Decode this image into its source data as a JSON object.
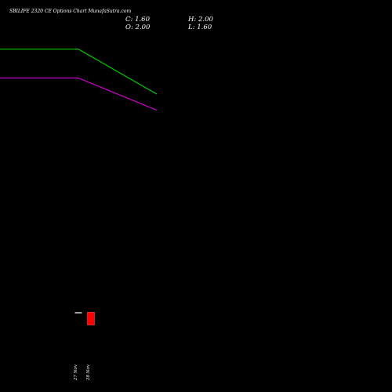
{
  "title": "SBILIFE 2320  CE Options  Chart MunafaSutra.com",
  "ohlc": {
    "close_label": "C: 1.60",
    "high_label": "H: 2.00",
    "open_label": "O: 2.00",
    "low_label": "L: 1.60"
  },
  "colors": {
    "background": "#000000",
    "green_line": "#00cc00",
    "magenta_line": "#cc00cc",
    "bear_candle": "#ff0000",
    "flat_candle": "#cccccc",
    "text": "#ffffff"
  },
  "chart_data": {
    "type": "candlestick",
    "dates": [
      "27 Nov",
      "28 Nov"
    ],
    "candles": [
      {
        "date": "27 Nov",
        "open": 2.0,
        "high": 2.0,
        "low": 2.0,
        "close": 2.0
      },
      {
        "date": "28 Nov",
        "open": 2.0,
        "high": 2.0,
        "low": 1.6,
        "close": 1.6
      }
    ],
    "lines": [
      {
        "color": "green",
        "points": [
          [
            0,
            10.2
          ],
          [
            1,
            10.2
          ],
          [
            2,
            8.8
          ]
        ]
      },
      {
        "color": "magenta",
        "points": [
          [
            0,
            9.3
          ],
          [
            1,
            9.3
          ],
          [
            2,
            8.3
          ]
        ]
      }
    ],
    "ylim": [
      0,
      11
    ],
    "grid": false
  }
}
